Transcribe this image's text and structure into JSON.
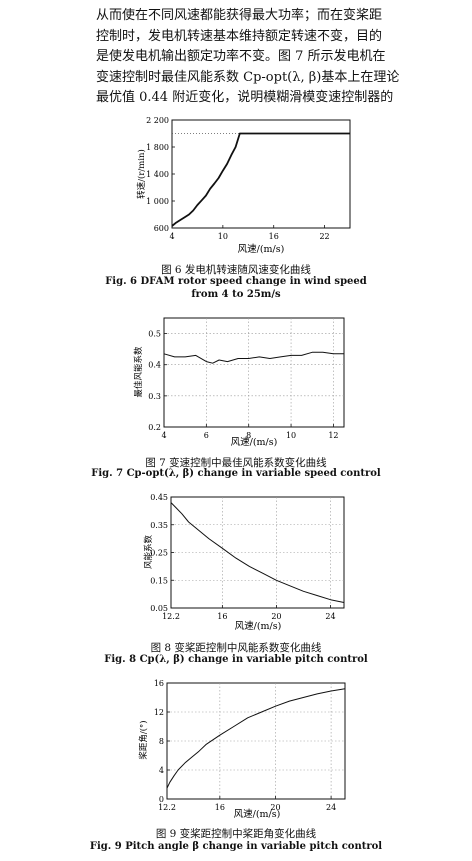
{
  "paragraph": {
    "lines": [
      "从而使在不同风速都能获得最大功率；而在变桨距",
      "控制时，发电机转速基本维持额定转速不变，目的",
      "是使发电机输出额定功率不变。图 7 所示发电机在",
      "变速控制时最佳风能系数 Cp-opt(λ, β)基本上在理论",
      "最优值 0.44 附近变化，说明模糊滑模变速控制器的"
    ]
  },
  "figures": [
    {
      "caption_cn": "图 6   发电机转速随风速变化曲线",
      "caption_en_1": "Fig. 6    DFAM rotor speed change in wind speed",
      "caption_en_2": "from 4 to 25m/s",
      "xlabel": "风速/(m/s)",
      "ylabel": "转速/(r/min)"
    },
    {
      "caption_cn": "图 7    变速控制中最佳风能系数变化曲线",
      "caption_en": "Fig. 7    Cp-opt(λ, β) change in variable speed control",
      "xlabel": "风速/(m/s)",
      "ylabel": "最佳风能系数"
    },
    {
      "caption_cn": "图 8    变桨距控制中风能系数变化曲线",
      "caption_en": "Fig. 8    Cp(λ, β) change in variable pitch control",
      "xlabel": "风速/(m/s)",
      "ylabel": "风能系数"
    },
    {
      "caption_cn": "图 9    变桨距控制中桨距角变化曲线",
      "caption_en": "Fig. 9    Pitch angle β change in variable pitch control",
      "xlabel": "风速/(m/s)",
      "ylabel": "桨距角/(°)"
    }
  ],
  "chart_data": [
    {
      "type": "line",
      "xlabel": "风速/(m/s)",
      "ylabel": "转速/(r/min)",
      "xlim": [
        4,
        25
      ],
      "ylim": [
        600,
        2200
      ],
      "xticks": [
        4,
        10,
        16,
        22
      ],
      "yticks": [
        600,
        1000,
        1400,
        1800,
        2200
      ],
      "xtick_labels": [
        "4",
        "10",
        "16",
        "22"
      ],
      "ytick_labels": [
        "600",
        "1 000",
        "1 400",
        "1 800",
        "2 200"
      ],
      "grid": false,
      "series": [
        {
          "x": [
            4,
            4.5,
            5,
            5.5,
            6,
            6.5,
            7,
            7.5,
            8,
            8.5,
            9,
            9.5,
            10,
            10.5,
            11,
            11.5,
            12,
            13,
            15,
            17,
            19,
            21,
            23,
            25
          ],
          "y": [
            630,
            680,
            720,
            760,
            800,
            860,
            940,
            1010,
            1080,
            1180,
            1260,
            1340,
            1450,
            1550,
            1680,
            1800,
            2000,
            2000,
            2000,
            2000,
            2000,
            2000,
            2000,
            2000
          ]
        }
      ],
      "reference_line": {
        "y": 2000,
        "style": "dotted"
      }
    },
    {
      "type": "line",
      "xlabel": "风速/(m/s)",
      "ylabel": "最佳风能系数",
      "xlim": [
        4,
        12.5
      ],
      "ylim": [
        0.2,
        0.55
      ],
      "xticks": [
        4,
        6,
        8,
        10,
        12
      ],
      "yticks": [
        0.2,
        0.3,
        0.4,
        0.5
      ],
      "xtick_labels": [
        "4",
        "6",
        "8",
        "10",
        "12"
      ],
      "ytick_labels": [
        "0.2",
        "0.3",
        "0.4",
        "0.5"
      ],
      "grid": true,
      "series": [
        {
          "x": [
            4,
            4.5,
            5,
            5.5,
            6,
            6.3,
            6.6,
            7,
            7.5,
            8,
            8.5,
            9,
            9.5,
            10,
            10.5,
            11,
            11.5,
            12,
            12.5
          ],
          "y": [
            0.435,
            0.425,
            0.425,
            0.43,
            0.41,
            0.405,
            0.415,
            0.41,
            0.42,
            0.42,
            0.425,
            0.42,
            0.425,
            0.43,
            0.43,
            0.44,
            0.44,
            0.435,
            0.435
          ]
        }
      ]
    },
    {
      "type": "line",
      "xlabel": "风速/(m/s)",
      "ylabel": "风能系数",
      "xlim": [
        12.2,
        25
      ],
      "ylim": [
        0.05,
        0.45
      ],
      "xticks": [
        12.2,
        16,
        20,
        24
      ],
      "yticks": [
        0.05,
        0.15,
        0.25,
        0.35,
        0.45
      ],
      "xtick_labels": [
        "12.2",
        "16",
        "20",
        "24"
      ],
      "ytick_labels": [
        "0.05",
        "0.15",
        "0.25",
        "0.35",
        "0.45"
      ],
      "grid": true,
      "series": [
        {
          "x": [
            12.2,
            12.6,
            13,
            13.5,
            14,
            15,
            16,
            17,
            18,
            19,
            20,
            21,
            22,
            23,
            24,
            25
          ],
          "y": [
            0.43,
            0.41,
            0.39,
            0.36,
            0.34,
            0.3,
            0.265,
            0.23,
            0.2,
            0.175,
            0.15,
            0.13,
            0.11,
            0.095,
            0.08,
            0.07
          ]
        }
      ]
    },
    {
      "type": "line",
      "xlabel": "风速/(m/s)",
      "ylabel": "桨距角/(°)",
      "xlim": [
        12.2,
        25
      ],
      "ylim": [
        0,
        16
      ],
      "xticks": [
        12.2,
        16,
        20,
        24
      ],
      "yticks": [
        0,
        4,
        8,
        12,
        16
      ],
      "xtick_labels": [
        "12.2",
        "16",
        "20",
        "24"
      ],
      "ytick_labels": [
        "0",
        "4",
        "8",
        "12",
        "16"
      ],
      "grid": true,
      "series": [
        {
          "x": [
            12.2,
            12.4,
            12.7,
            13,
            13.5,
            14,
            14.5,
            15,
            16,
            17,
            18,
            19,
            20,
            21,
            22,
            23,
            24,
            25
          ],
          "y": [
            1.5,
            2.3,
            3.2,
            4.0,
            5.0,
            5.8,
            6.6,
            7.5,
            8.8,
            10.0,
            11.2,
            12.0,
            12.8,
            13.5,
            14.0,
            14.5,
            14.9,
            15.2
          ]
        }
      ]
    }
  ]
}
